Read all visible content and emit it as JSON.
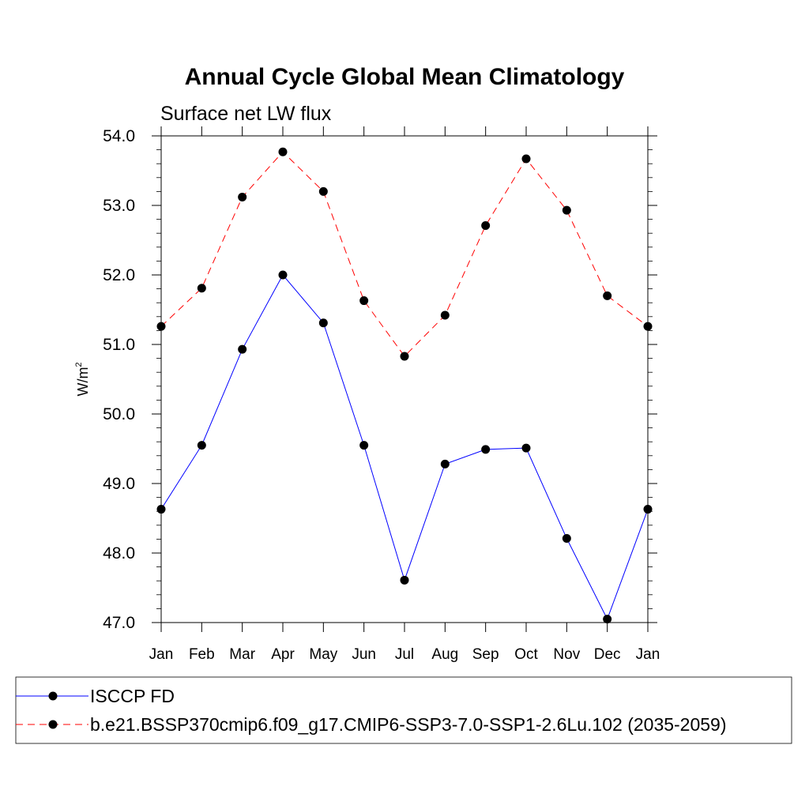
{
  "chart_data": {
    "type": "line",
    "title": "Annual Cycle Global Mean Climatology",
    "subtitle": "Surface net LW flux",
    "xlabel": "",
    "ylabel": "W/m",
    "ylabel_sup": "2",
    "ylim": [
      47.0,
      54.0
    ],
    "yticks": [
      47.0,
      48.0,
      49.0,
      50.0,
      51.0,
      52.0,
      53.0,
      54.0
    ],
    "ytick_labels": [
      "47.0",
      "48.0",
      "49.0",
      "50.0",
      "51.0",
      "52.0",
      "53.0",
      "54.0"
    ],
    "categories": [
      "Jan",
      "Feb",
      "Mar",
      "Apr",
      "May",
      "Jun",
      "Jul",
      "Aug",
      "Sep",
      "Oct",
      "Nov",
      "Dec",
      "Jan"
    ],
    "grid": false,
    "legend_position": "bottom",
    "series": [
      {
        "name": "ISCCP FD",
        "color": "#0000ff",
        "dash": "solid",
        "marker": "filled-circle",
        "values": [
          48.63,
          49.55,
          50.93,
          52.0,
          51.31,
          49.55,
          47.61,
          49.28,
          49.49,
          49.51,
          48.21,
          47.05,
          48.63
        ]
      },
      {
        "name": "b.e21.BSSP370cmip6.f09_g17.CMIP6-SSP3-7.0-SSP1-2.6Lu.102 (2035-2059)",
        "color": "#ff0000",
        "dash": "dashed",
        "marker": "filled-circle",
        "values": [
          51.26,
          51.81,
          53.12,
          53.77,
          53.2,
          51.63,
          50.83,
          51.42,
          52.71,
          53.67,
          52.93,
          51.7,
          51.26
        ]
      }
    ]
  }
}
